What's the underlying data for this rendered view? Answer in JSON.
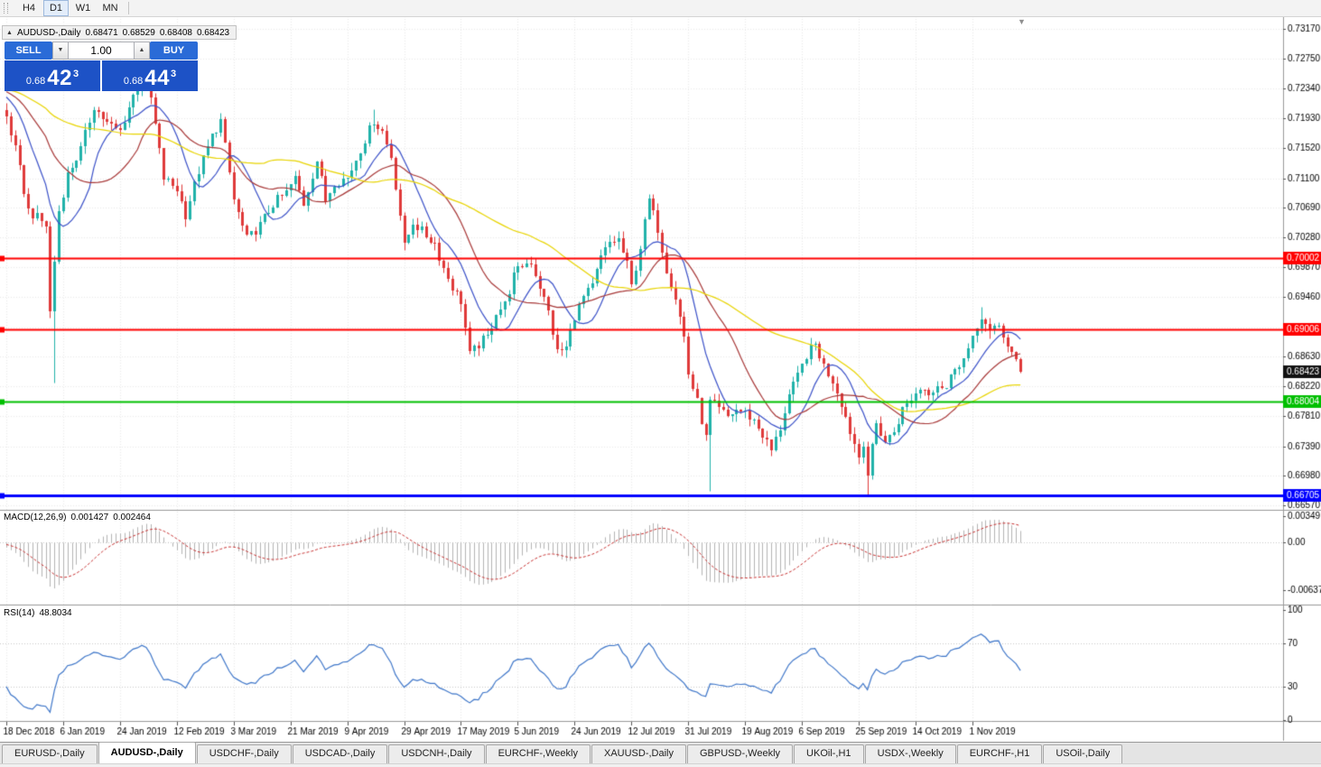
{
  "icons": {
    "chart_symbol_icon": "▲",
    "volume_down_icon": "▼",
    "volume_up_icon": "▲",
    "chart_shift_icon": "▼"
  },
  "toolbar": {
    "timeframes": [
      {
        "label": "H4",
        "active": false
      },
      {
        "label": "D1",
        "active": true
      },
      {
        "label": "W1",
        "active": false
      },
      {
        "label": "MN",
        "active": false
      }
    ]
  },
  "chart": {
    "title": {
      "symbol": "AUDUSD-,Daily",
      "open": "0.68471",
      "high": "0.68529",
      "low": "0.68408",
      "close": "0.68423"
    },
    "trade_panel": {
      "sell_label": "SELL",
      "buy_label": "BUY",
      "volume": "1.00",
      "sell_price": {
        "small": "0.68",
        "big": "42",
        "sup": "3"
      },
      "buy_price": {
        "small": "0.68",
        "big": "44",
        "sup": "3"
      }
    },
    "price_axis": {
      "labels": [
        "0.73170",
        "0.72750",
        "0.72340",
        "0.71930",
        "0.71520",
        "0.71100",
        "0.70690",
        "0.70280",
        "0.69870",
        "0.69460",
        "0.69040",
        "0.68630",
        "0.68220",
        "0.67810",
        "0.67390",
        "0.66980",
        "0.66570"
      ]
    },
    "x_axis": {
      "labels": [
        {
          "label": "18 Dec 2018",
          "bar": 0
        },
        {
          "label": "6 Jan 2019",
          "bar": 13
        },
        {
          "label": "24 Jan 2019",
          "bar": 26
        },
        {
          "label": "12 Feb 2019",
          "bar": 39
        },
        {
          "label": "3 Mar 2019",
          "bar": 52
        },
        {
          "label": "21 Mar 2019",
          "bar": 65
        },
        {
          "label": "9 Apr 2019",
          "bar": 78
        },
        {
          "label": "29 Apr 2019",
          "bar": 91
        },
        {
          "label": "17 May 2019",
          "bar": 104
        },
        {
          "label": "5 Jun 2019",
          "bar": 117
        },
        {
          "label": "24 Jun 2019",
          "bar": 130
        },
        {
          "label": "12 Jul 2019",
          "bar": 143
        },
        {
          "label": "31 Jul 2019",
          "bar": 156
        },
        {
          "label": "19 Aug 2019",
          "bar": 169
        },
        {
          "label": "6 Sep 2019",
          "bar": 182
        },
        {
          "label": "25 Sep 2019",
          "bar": 195
        },
        {
          "label": "14 Oct 2019",
          "bar": 208
        },
        {
          "label": "1 Nov 2019",
          "bar": 221
        }
      ]
    },
    "hlines": [
      {
        "price": 0.70002,
        "label": "0.70002",
        "color": "#FF0000",
        "width": 2
      },
      {
        "price": 0.69006,
        "label": "0.69006",
        "color": "#FF0000",
        "width": 2
      },
      {
        "price": 0.68004,
        "label": "0.68004",
        "color": "#00BF00",
        "width": 2
      },
      {
        "price": 0.66705,
        "label": "0.66705",
        "color": "#0000FF",
        "width": 3
      }
    ],
    "current_price": {
      "label": "0.68423",
      "value": 0.68423,
      "bg": "#111111",
      "text": "#ffffff"
    },
    "colors": {
      "bull": "#20B2AA",
      "bear": "#DF3A3A",
      "ma_fast": "#3A50C8",
      "ma_mid": "#A83838",
      "ma_slow": "#E8D400",
      "macd_hist": "#B4B4B4",
      "macd_signal": "#C83232",
      "rsi_line": "#3E76C9",
      "grid": "#E8E8E8",
      "level_dotted": "#C9C9C9",
      "separator": "#999999",
      "axis_text": "#000000"
    },
    "chart_data": {
      "type": "candlestick",
      "symbol": "AUDUSD",
      "timeframe": "Daily",
      "bars": 233,
      "ylim": [
        0.6657,
        0.7321
      ],
      "current_ohlc": {
        "open": 0.68471,
        "high": 0.68529,
        "low": 0.68408,
        "close": 0.68423
      },
      "close_keyframes": [
        [
          0,
          0.7195
        ],
        [
          2,
          0.715
        ],
        [
          5,
          0.7065
        ],
        [
          9,
          0.7045
        ],
        [
          10,
          0.6925
        ],
        [
          12,
          0.7065
        ],
        [
          14,
          0.7115
        ],
        [
          17,
          0.715
        ],
        [
          20,
          0.721
        ],
        [
          23,
          0.7185
        ],
        [
          26,
          0.7175
        ],
        [
          29,
          0.7225
        ],
        [
          31,
          0.725
        ],
        [
          33,
          0.722
        ],
        [
          36,
          0.711
        ],
        [
          39,
          0.7095
        ],
        [
          41,
          0.706
        ],
        [
          44,
          0.712
        ],
        [
          47,
          0.7168
        ],
        [
          49,
          0.719
        ],
        [
          52,
          0.708
        ],
        [
          55,
          0.7025
        ],
        [
          58,
          0.7045
        ],
        [
          61,
          0.7075
        ],
        [
          64,
          0.709
        ],
        [
          66,
          0.711
        ],
        [
          68,
          0.7075
        ],
        [
          71,
          0.7135
        ],
        [
          73,
          0.708
        ],
        [
          75,
          0.7105
        ],
        [
          78,
          0.711
        ],
        [
          81,
          0.715
        ],
        [
          84,
          0.719
        ],
        [
          86,
          0.7175
        ],
        [
          88,
          0.714
        ],
        [
          90,
          0.706
        ],
        [
          91,
          0.7015
        ],
        [
          93,
          0.705
        ],
        [
          96,
          0.703
        ],
        [
          98,
          0.702
        ],
        [
          100,
          0.6985
        ],
        [
          102,
          0.696
        ],
        [
          104,
          0.694
        ],
        [
          106,
          0.6865
        ],
        [
          108,
          0.688
        ],
        [
          110,
          0.689
        ],
        [
          112,
          0.6925
        ],
        [
          114,
          0.6935
        ],
        [
          116,
          0.6975
        ],
        [
          118,
          0.699
        ],
        [
          120,
          0.6995
        ],
        [
          122,
          0.696
        ],
        [
          124,
          0.6925
        ],
        [
          126,
          0.687
        ],
        [
          128,
          0.6875
        ],
        [
          130,
          0.692
        ],
        [
          132,
          0.6945
        ],
        [
          134,
          0.696
        ],
        [
          136,
          0.7
        ],
        [
          138,
          0.7021
        ],
        [
          140,
          0.7025
        ],
        [
          142,
          0.699
        ],
        [
          143,
          0.696
        ],
        [
          145,
          0.7015
        ],
        [
          147,
          0.708
        ],
        [
          149,
          0.704
        ],
        [
          151,
          0.6985
        ],
        [
          153,
          0.6945
        ],
        [
          155,
          0.689
        ],
        [
          156,
          0.684
        ],
        [
          158,
          0.68
        ],
        [
          160,
          0.675
        ],
        [
          161,
          0.68
        ],
        [
          163,
          0.679
        ],
        [
          165,
          0.678
        ],
        [
          167,
          0.679
        ],
        [
          169,
          0.6785
        ],
        [
          171,
          0.6775
        ],
        [
          173,
          0.6755
        ],
        [
          175,
          0.6733
        ],
        [
          177,
          0.6765
        ],
        [
          179,
          0.681
        ],
        [
          181,
          0.6835
        ],
        [
          183,
          0.6865
        ],
        [
          185,
          0.688
        ],
        [
          187,
          0.685
        ],
        [
          189,
          0.683
        ],
        [
          191,
          0.68
        ],
        [
          193,
          0.676
        ],
        [
          195,
          0.6725
        ],
        [
          196,
          0.6745
        ],
        [
          197,
          0.67
        ],
        [
          199,
          0.677
        ],
        [
          201,
          0.6745
        ],
        [
          203,
          0.676
        ],
        [
          205,
          0.679
        ],
        [
          207,
          0.6805
        ],
        [
          209,
          0.682
        ],
        [
          211,
          0.6815
        ],
        [
          213,
          0.6825
        ],
        [
          215,
          0.682
        ],
        [
          217,
          0.685
        ],
        [
          219,
          0.686
        ],
        [
          221,
          0.6885
        ],
        [
          223,
          0.692
        ],
        [
          225,
          0.6895
        ],
        [
          227,
          0.6905
        ],
        [
          229,
          0.688
        ],
        [
          231,
          0.6855
        ],
        [
          232,
          0.6842
        ]
      ],
      "low_spikes": [
        [
          11,
          0.6827
        ],
        [
          161,
          0.6677
        ],
        [
          197,
          0.6671
        ]
      ],
      "high_spikes": [
        [
          31,
          0.7245
        ],
        [
          84,
          0.7206
        ],
        [
          223,
          0.6932
        ]
      ],
      "moving_averages": [
        {
          "period": 10,
          "color_key": "ma_fast"
        },
        {
          "period": 21,
          "color_key": "ma_mid"
        },
        {
          "period": 50,
          "color_key": "ma_slow"
        }
      ]
    }
  },
  "macd": {
    "label": "MACD(12,26,9)",
    "value_main": "0.001427",
    "value_signal": "0.002464",
    "params": {
      "fast": 12,
      "slow": 26,
      "signal": 9
    },
    "axis": [
      {
        "label": "0.00349",
        "value": 0.00349
      },
      {
        "label": "0.00",
        "value": 0
      },
      {
        "label": "-0.00637",
        "value": -0.00637
      }
    ]
  },
  "rsi": {
    "label": "RSI(14)",
    "value": "48.8034",
    "period": 14,
    "levels": [
      70,
      30
    ],
    "axis": [
      {
        "label": "100",
        "value": 100
      },
      {
        "label": "70",
        "value": 70
      },
      {
        "label": "30",
        "value": 30
      },
      {
        "label": "0",
        "value": 0
      }
    ]
  },
  "tabs": {
    "items": [
      {
        "label": "EURUSD-,Daily",
        "active": false
      },
      {
        "label": "AUDUSD-,Daily",
        "active": true
      },
      {
        "label": "USDCHF-,Daily",
        "active": false
      },
      {
        "label": "USDCAD-,Daily",
        "active": false
      },
      {
        "label": "USDCNH-,Daily",
        "active": false
      },
      {
        "label": "EURCHF-,Weekly",
        "active": false
      },
      {
        "label": "XAUUSD-,Daily",
        "active": false
      },
      {
        "label": "GBPUSD-,Weekly",
        "active": false
      },
      {
        "label": "UKOil-,H1",
        "active": false
      },
      {
        "label": "USDX-,Weekly",
        "active": false
      },
      {
        "label": "EURCHF-,H1",
        "active": false
      },
      {
        "label": "USOil-,Daily",
        "active": false
      }
    ]
  }
}
